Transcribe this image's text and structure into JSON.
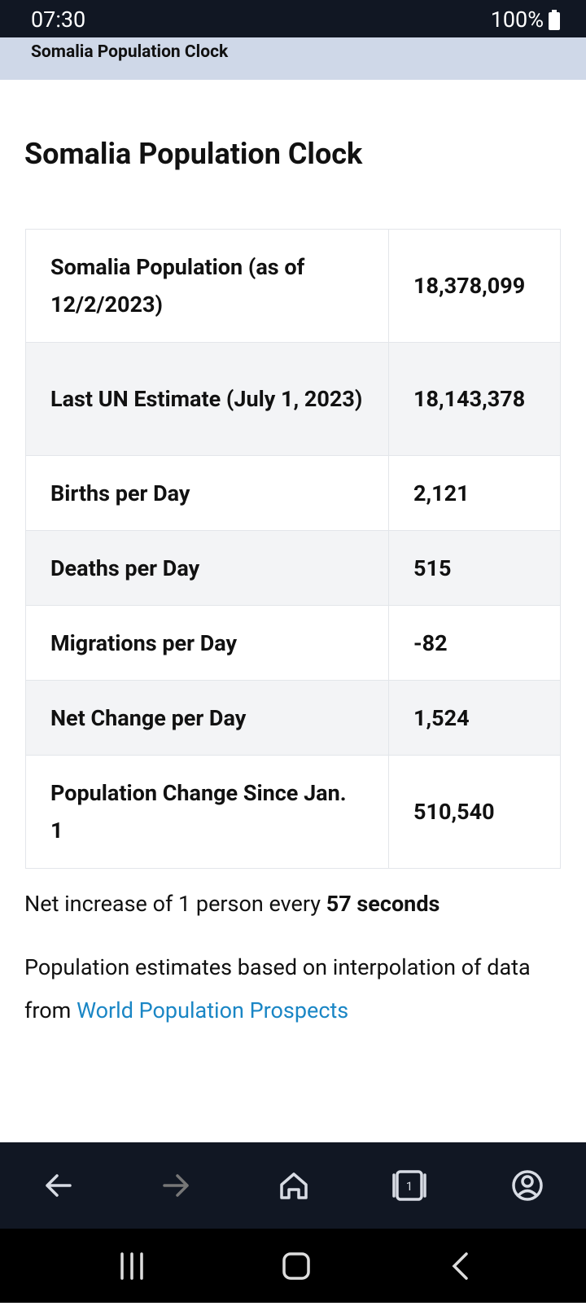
{
  "status_bar": {
    "time": "07:30",
    "battery": "100%"
  },
  "header": {
    "title": "Somalia Population Clock"
  },
  "content": {
    "heading": "Somalia Population Clock",
    "table": {
      "rows": [
        [
          "Somalia Population (as of 12/2/2023)",
          "18,378,099"
        ],
        [
          "Last UN Estimate (July 1, 2023)",
          "18,143,378"
        ],
        [
          "Births per Day",
          "2,121"
        ],
        [
          "Deaths per Day",
          "515"
        ],
        [
          "Migrations per Day",
          "-82"
        ],
        [
          "Net Change per Day",
          "1,524"
        ],
        [
          "Population Change Since Jan. 1",
          "510,540"
        ]
      ]
    },
    "rate_text": "Net increase of 1 person every",
    "rate_value": "57 seconds",
    "source_text": "Population estimates based on interpolation of data from",
    "source_link": "World Population Prospects"
  },
  "browser_bar": {
    "tab_count": "1"
  }
}
